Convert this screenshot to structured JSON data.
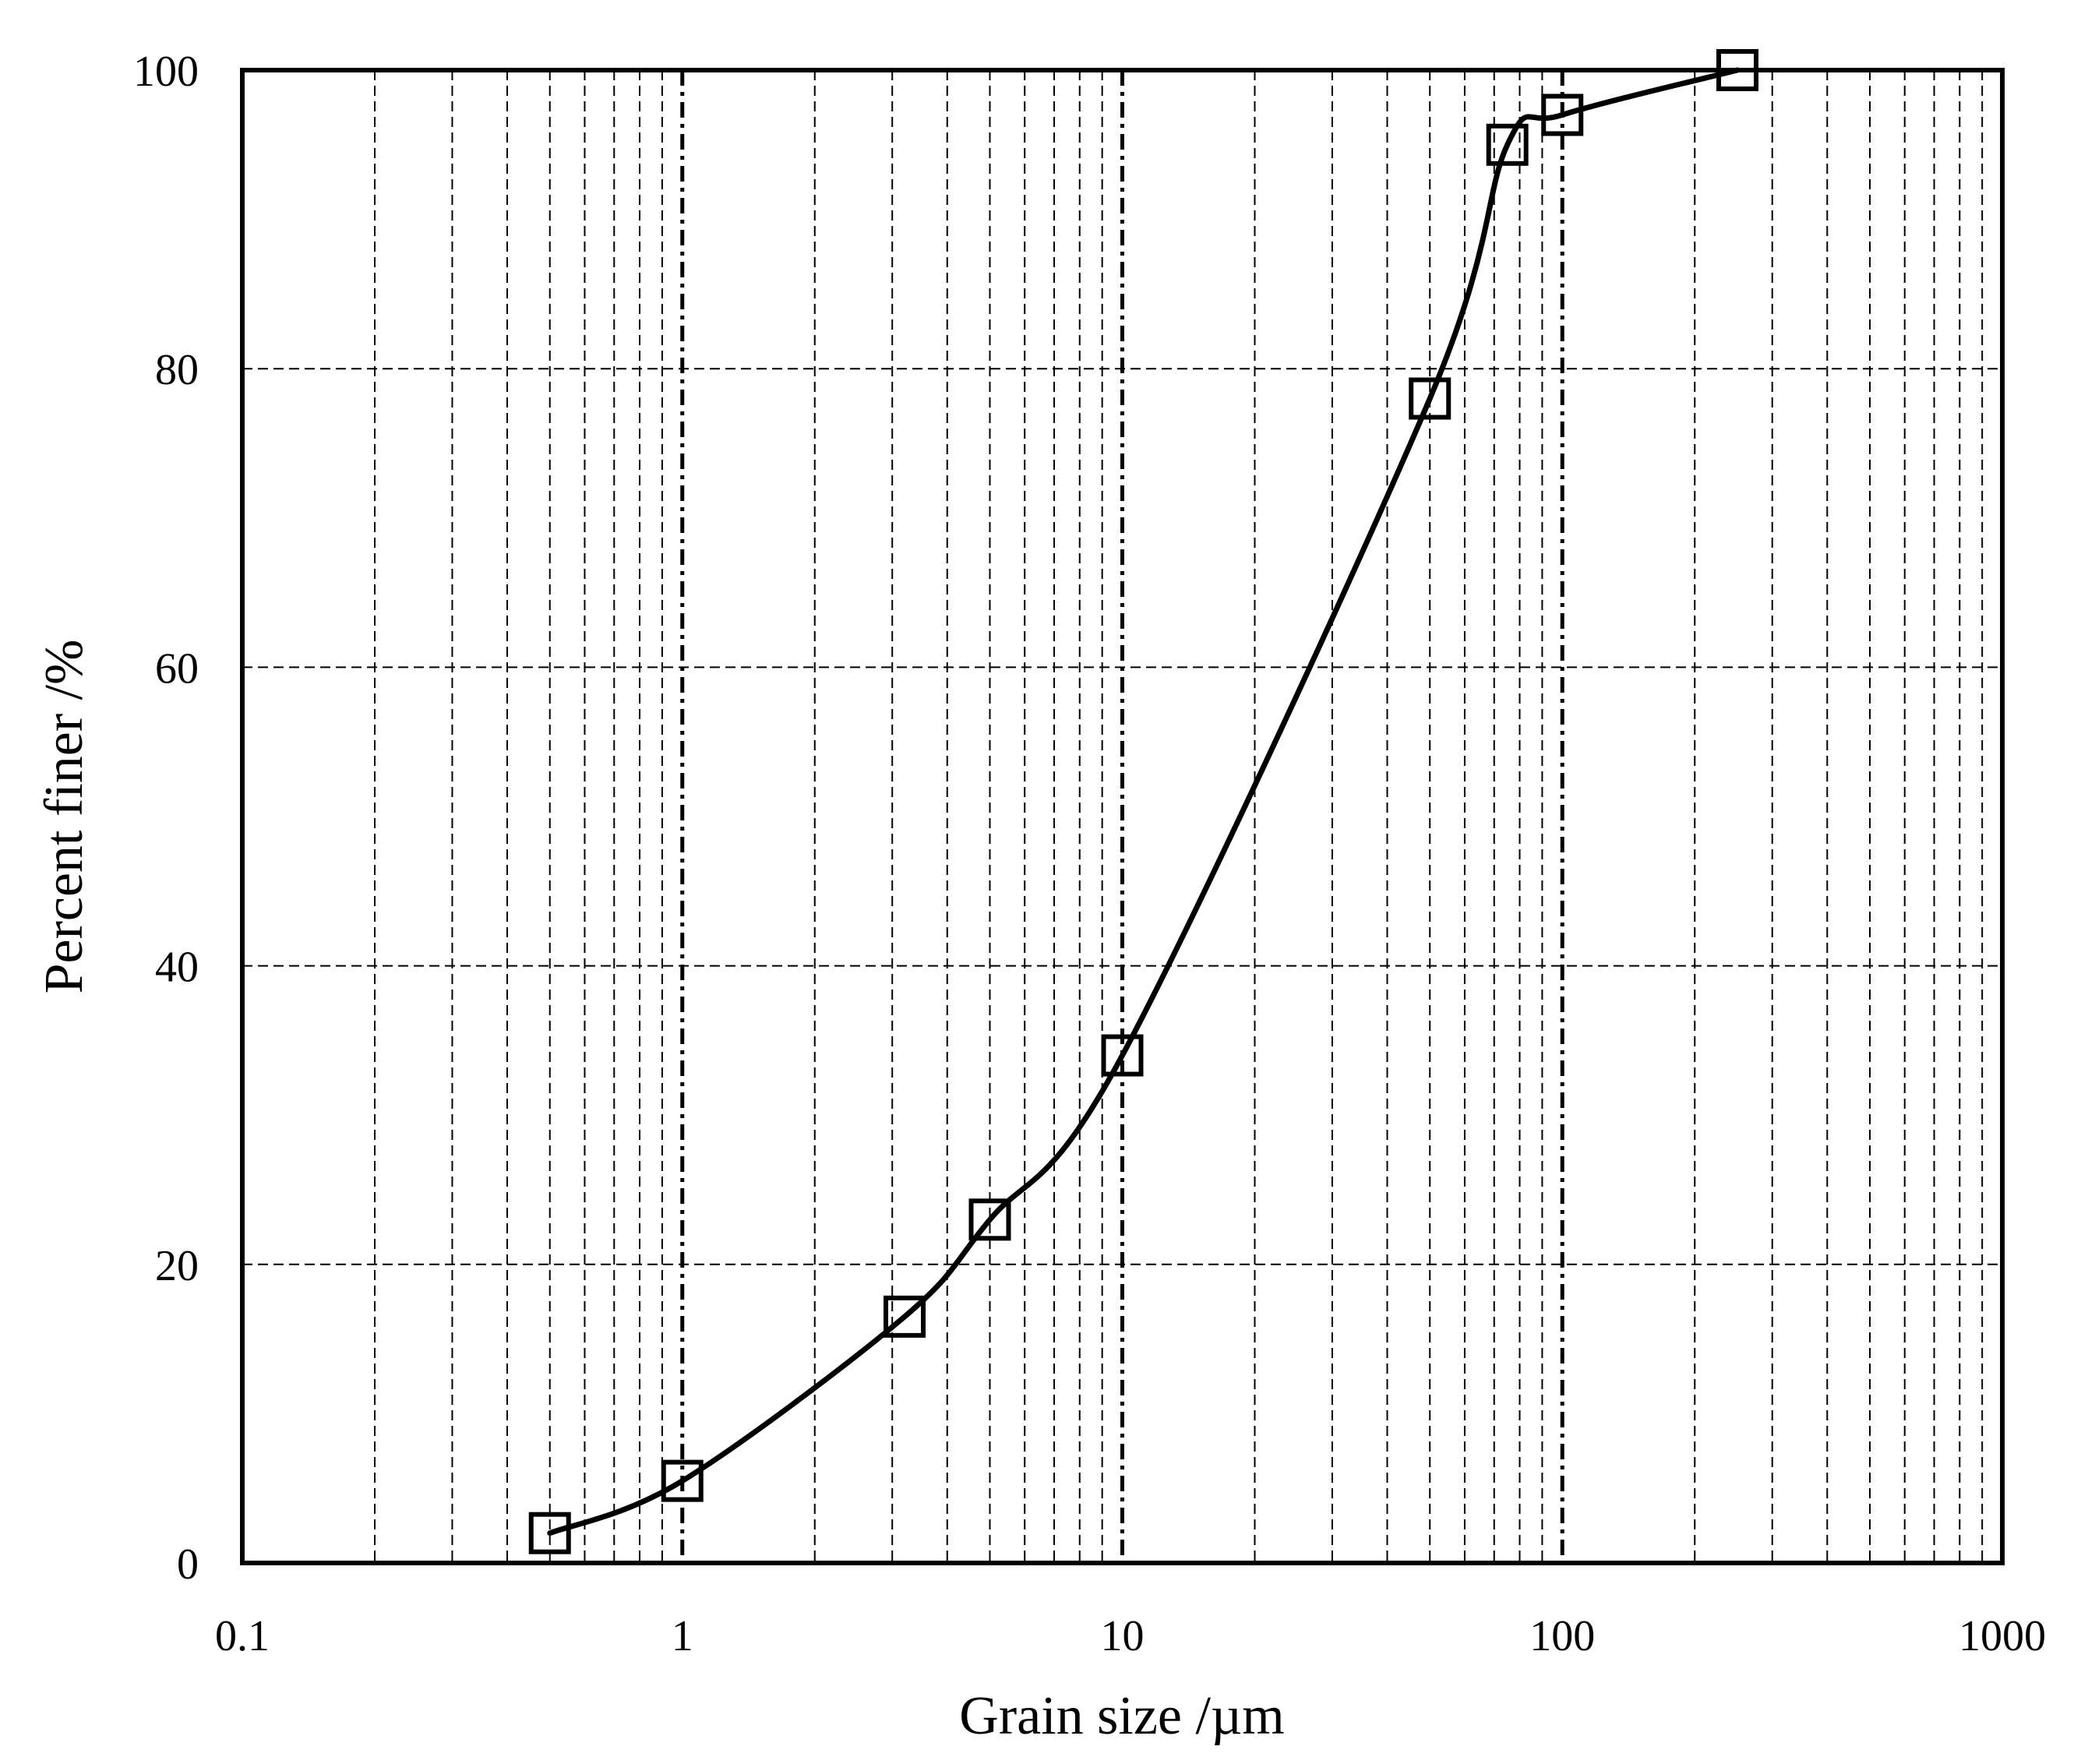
{
  "chart_data": {
    "type": "line",
    "title": "",
    "xlabel": "Grain size /µm",
    "ylabel": "Percent finer /%",
    "x_scale": "log",
    "xlim": [
      0.1,
      1000
    ],
    "ylim": [
      0,
      100
    ],
    "x_ticks": [
      0.1,
      1,
      10,
      100,
      1000
    ],
    "x_tick_labels": [
      "0.1",
      "1",
      "10",
      "100",
      "1000"
    ],
    "y_ticks": [
      0,
      20,
      40,
      60,
      80,
      100
    ],
    "y_tick_labels": [
      "0",
      "20",
      "40",
      "60",
      "80",
      "100"
    ],
    "grid": true,
    "legend": "none",
    "marker": "open-square",
    "line_style": "smooth-solid",
    "colors": {
      "line": "#000000",
      "marker_fill": "#ffffff",
      "grid": "#000000"
    },
    "series": [
      {
        "x": [
          0.5,
          1,
          3.2,
          5,
          10,
          50,
          75,
          100,
          250
        ],
        "y": [
          2,
          5.5,
          16.5,
          23,
          34,
          78,
          95,
          97,
          100
        ]
      }
    ]
  }
}
